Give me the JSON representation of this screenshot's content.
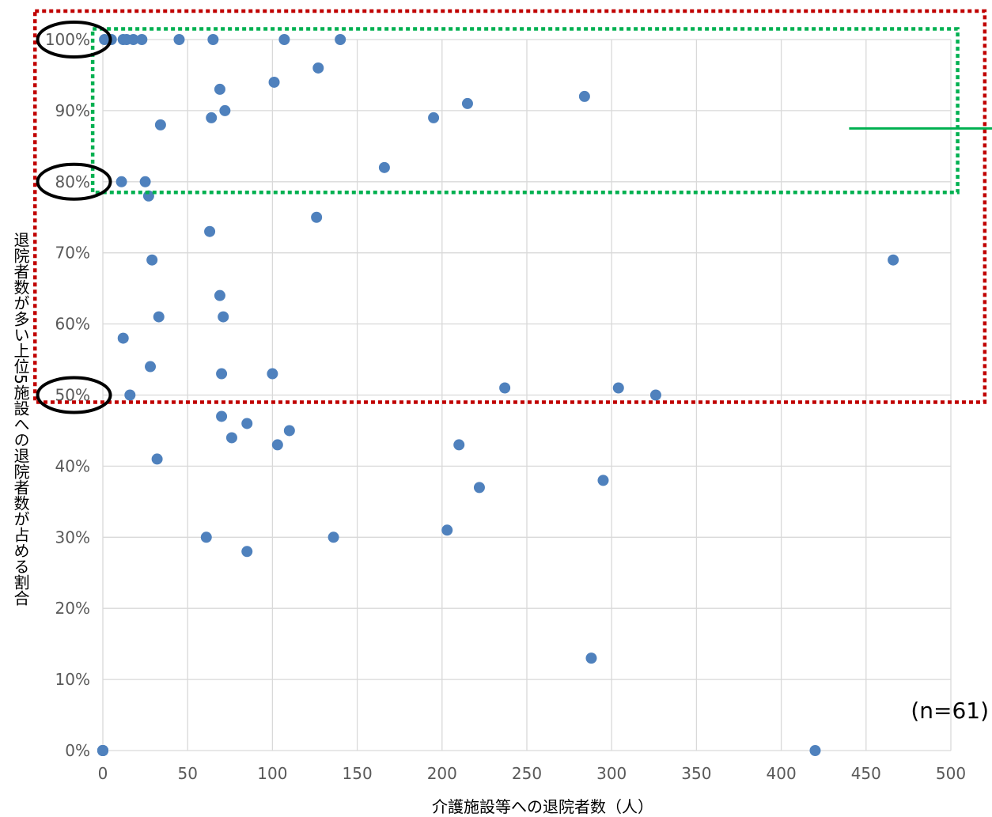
{
  "chart_data": {
    "type": "scatter",
    "xlabel": "介護施設等への退院者数（人）",
    "ylabel": "退院者数が多い上位5施設への退院者数が占める割合",
    "xlim": [
      0,
      500
    ],
    "ylim": [
      0,
      1
    ],
    "x_ticks": [
      "0",
      "50",
      "100",
      "150",
      "200",
      "250",
      "300",
      "350",
      "400",
      "450",
      "500"
    ],
    "y_ticks": [
      "0%",
      "10%",
      "20%",
      "30%",
      "40%",
      "50%",
      "60%",
      "70%",
      "80%",
      "90%",
      "100%"
    ],
    "grid": true,
    "note": "(n=61)",
    "marker_color": "#4f81bd",
    "series": [
      {
        "points": [
          [
            1,
            1.0
          ],
          [
            5,
            1.0
          ],
          [
            12,
            1.0
          ],
          [
            14,
            1.0
          ],
          [
            18,
            1.0
          ],
          [
            23,
            1.0
          ],
          [
            45,
            1.0
          ],
          [
            65,
            1.0
          ],
          [
            107,
            1.0
          ],
          [
            140,
            1.0
          ],
          [
            127,
            0.96
          ],
          [
            101,
            0.94
          ],
          [
            69,
            0.93
          ],
          [
            72,
            0.9
          ],
          [
            64,
            0.89
          ],
          [
            34,
            0.88
          ],
          [
            195,
            0.89
          ],
          [
            215,
            0.91
          ],
          [
            284,
            0.92
          ],
          [
            166,
            0.82
          ],
          [
            11,
            0.8
          ],
          [
            25,
            0.8
          ],
          [
            27,
            0.78
          ],
          [
            126,
            0.75
          ],
          [
            63,
            0.73
          ],
          [
            29,
            0.69
          ],
          [
            466,
            0.69
          ],
          [
            69,
            0.64
          ],
          [
            33,
            0.61
          ],
          [
            71,
            0.61
          ],
          [
            12,
            0.58
          ],
          [
            28,
            0.54
          ],
          [
            70,
            0.53
          ],
          [
            100,
            0.53
          ],
          [
            16,
            0.5
          ],
          [
            237,
            0.51
          ],
          [
            304,
            0.51
          ],
          [
            326,
            0.5
          ],
          [
            70,
            0.47
          ],
          [
            85,
            0.46
          ],
          [
            110,
            0.45
          ],
          [
            76,
            0.44
          ],
          [
            103,
            0.43
          ],
          [
            210,
            0.43
          ],
          [
            32,
            0.41
          ],
          [
            222,
            0.37
          ],
          [
            295,
            0.38
          ],
          [
            61,
            0.3
          ],
          [
            85,
            0.28
          ],
          [
            136,
            0.3
          ],
          [
            203,
            0.31
          ],
          [
            288,
            0.13
          ],
          [
            0,
            0
          ],
          [
            0,
            0
          ],
          [
            0,
            0
          ],
          [
            0,
            0
          ],
          [
            0,
            0
          ],
          [
            0,
            0
          ],
          [
            0,
            0
          ],
          [
            0,
            0
          ],
          [
            420,
            0
          ]
        ]
      }
    ],
    "annotations": [
      {
        "shape": "dotted-rect",
        "color": "#c00000",
        "x_range": [
          -40,
          520
        ],
        "y_range": [
          0.49,
          1.04
        ]
      },
      {
        "shape": "dotted-rect",
        "color": "#00b050",
        "x_range": [
          -6,
          504
        ],
        "y_range": [
          0.785,
          1.015
        ]
      },
      {
        "shape": "line",
        "color": "#00b050",
        "x_range": [
          440,
          525
        ],
        "y": 0.875
      },
      {
        "shape": "ellipse",
        "color": "#000000",
        "x": -17,
        "y": 1.0
      },
      {
        "shape": "ellipse",
        "color": "#000000",
        "x": -17,
        "y": 0.8
      },
      {
        "shape": "ellipse",
        "color": "#000000",
        "x": -17,
        "y": 0.5
      }
    ]
  }
}
